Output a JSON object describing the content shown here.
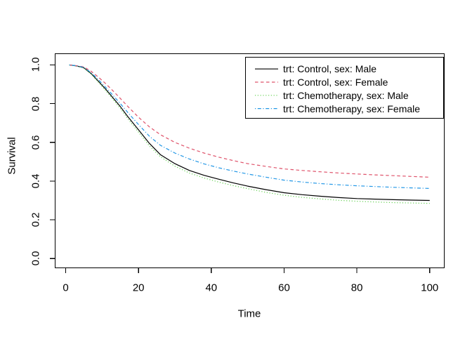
{
  "colors": {
    "background": "#FFFFFF",
    "foreground": "#000000",
    "series_black": "#000000",
    "series_red": "#DF536B",
    "series_green": "#61D04F",
    "series_blue": "#2297E6"
  },
  "chart_data": {
    "type": "line",
    "title": "",
    "xlabel": "Time",
    "ylabel": "Survival",
    "x_ticks": [
      0,
      20,
      40,
      60,
      80,
      100
    ],
    "y_ticks": [
      "0.0",
      "0.2",
      "0.4",
      "0.6",
      "0.8",
      "1.0"
    ],
    "xlim": [
      -2.9,
      104.0
    ],
    "ylim": [
      -0.048,
      1.058
    ],
    "grid": "off",
    "legend_position": "topright",
    "x": [
      1,
      3,
      5,
      7,
      9,
      11,
      13,
      15,
      17,
      20,
      23,
      26,
      30,
      34,
      38,
      42,
      46,
      50,
      55,
      60,
      65,
      70,
      75,
      80,
      85,
      90,
      95,
      100
    ],
    "series": [
      {
        "name": "trt: Control, sex: Male",
        "color": "#000000",
        "linetype": "solid",
        "values": [
          1.0,
          0.995,
          0.985,
          0.955,
          0.915,
          0.875,
          0.83,
          0.785,
          0.735,
          0.665,
          0.595,
          0.537,
          0.49,
          0.455,
          0.43,
          0.41,
          0.391,
          0.374,
          0.356,
          0.34,
          0.33,
          0.322,
          0.315,
          0.31,
          0.307,
          0.304,
          0.302,
          0.3
        ]
      },
      {
        "name": "trt: Control, sex: Female",
        "color": "#DF536B",
        "linetype": "dashed",
        "values": [
          1.0,
          0.996,
          0.99,
          0.967,
          0.937,
          0.903,
          0.866,
          0.827,
          0.787,
          0.73,
          0.68,
          0.64,
          0.6,
          0.57,
          0.545,
          0.524,
          0.506,
          0.49,
          0.476,
          0.463,
          0.455,
          0.448,
          0.442,
          0.437,
          0.432,
          0.428,
          0.424,
          0.42
        ]
      },
      {
        "name": "trt: Chemotherapy, sex: Male",
        "color": "#61D04F",
        "linetype": "dotted",
        "values": [
          1.0,
          0.995,
          0.984,
          0.953,
          0.91,
          0.868,
          0.822,
          0.775,
          0.724,
          0.653,
          0.582,
          0.526,
          0.477,
          0.442,
          0.416,
          0.395,
          0.377,
          0.361,
          0.342,
          0.327,
          0.316,
          0.308,
          0.301,
          0.296,
          0.292,
          0.289,
          0.287,
          0.285
        ]
      },
      {
        "name": "trt: Chemotherapy, sex: Female",
        "color": "#2297E6",
        "linetype": "dotdash",
        "values": [
          1.0,
          0.996,
          0.987,
          0.96,
          0.924,
          0.884,
          0.843,
          0.8,
          0.756,
          0.692,
          0.632,
          0.585,
          0.545,
          0.514,
          0.489,
          0.469,
          0.452,
          0.437,
          0.42,
          0.405,
          0.395,
          0.387,
          0.381,
          0.376,
          0.372,
          0.368,
          0.365,
          0.362
        ]
      }
    ]
  }
}
